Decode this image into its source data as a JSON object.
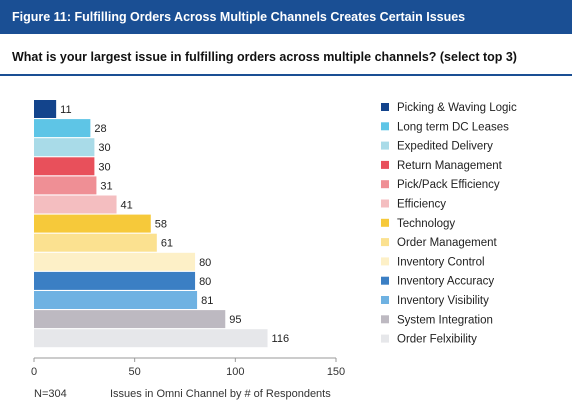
{
  "figure_title": "Figure 11: Fulfilling Orders Across Multiple Channels Creates Certain Issues",
  "question": "What is your largest issue in fulfilling orders across multiple channels? (select top 3)",
  "footnote": "N=304",
  "chart_data": {
    "type": "bar",
    "orientation": "horizontal",
    "categories": [
      "Picking & Waving Logic",
      "Long term DC Leases",
      "Expedited Delivery",
      "Return Management",
      "Pick/Pack Efficiency",
      "Efficiency",
      "Technology",
      "Order Management",
      "Inventory Control",
      "Inventory Accuracy",
      "Inventory Visibility",
      "System Integration",
      "Order Felxibility"
    ],
    "values": [
      11,
      28,
      30,
      30,
      31,
      41,
      58,
      61,
      80,
      80,
      81,
      95,
      116
    ],
    "colors": [
      "#13448c",
      "#5ec5e6",
      "#a9dbe8",
      "#e8505b",
      "#ef8f95",
      "#f4bec0",
      "#f6c93a",
      "#fbe190",
      "#fdf0c7",
      "#3b7fc4",
      "#6fb2e2",
      "#bdb9c1",
      "#e6e7ea"
    ],
    "xlabel": "Issues in Omni Channel by # of Respondents",
    "xlim": [
      0,
      150
    ],
    "xticks": [
      "0",
      "50",
      "100",
      "150"
    ],
    "legend_position": "right",
    "grid": false
  }
}
